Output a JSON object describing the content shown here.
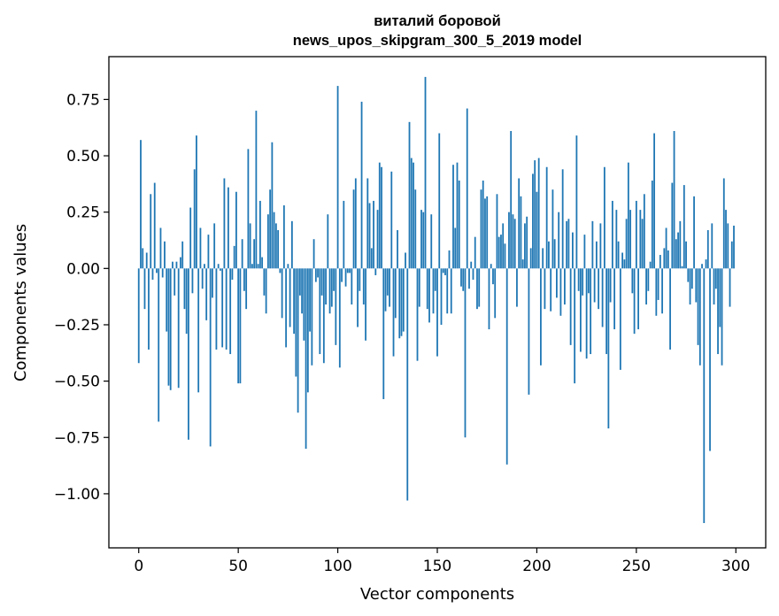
{
  "chart_data": {
    "type": "bar",
    "title": "виталий боровой",
    "subtitle": "news_upos_skipgram_300_5_2019 model",
    "xlabel": "Vector components",
    "ylabel": "Components values",
    "xlim": [
      -15,
      315
    ],
    "ylim": [
      -1.24,
      0.94
    ],
    "xticks": [
      0,
      50,
      100,
      150,
      200,
      250,
      300
    ],
    "yticks": [
      0.75,
      0.5,
      0.25,
      0.0,
      -0.25,
      -0.5,
      -0.75,
      -1.0
    ],
    "ytick_labels": [
      "0.75",
      "0.50",
      "0.25",
      "0.00",
      "−0.25",
      "−0.50",
      "−0.75",
      "−1.00"
    ],
    "bar_color": "#1f77b4",
    "grid": false,
    "legend": "none",
    "values": [
      -0.42,
      0.57,
      0.09,
      -0.18,
      0.07,
      -0.36,
      0.33,
      -0.05,
      0.38,
      -0.02,
      -0.68,
      0.18,
      -0.04,
      0.12,
      -0.28,
      -0.52,
      -0.54,
      0.03,
      -0.12,
      0.03,
      -0.53,
      0.05,
      0.12,
      -0.18,
      -0.29,
      -0.76,
      0.27,
      -0.11,
      0.44,
      0.59,
      -0.55,
      0.18,
      -0.09,
      0.02,
      -0.23,
      0.15,
      -0.79,
      -0.13,
      0.2,
      -0.36,
      0.02,
      -0.01,
      -0.35,
      0.4,
      -0.36,
      0.36,
      -0.38,
      -0.05,
      0.1,
      0.34,
      -0.51,
      -0.51,
      0.13,
      -0.1,
      -0.18,
      0.53,
      0.2,
      0.02,
      0.13,
      0.7,
      0.02,
      0.3,
      0.05,
      -0.12,
      -0.2,
      0.24,
      0.35,
      0.56,
      0.25,
      0.2,
      0.17,
      -0.02,
      -0.22,
      0.28,
      -0.35,
      0.02,
      -0.26,
      0.21,
      -0.29,
      -0.48,
      -0.64,
      -0.12,
      -0.2,
      -0.32,
      -0.8,
      -0.55,
      -0.28,
      -0.43,
      0.13,
      -0.06,
      -0.04,
      -0.38,
      -0.12,
      -0.42,
      -0.16,
      0.24,
      -0.2,
      -0.17,
      -0.1,
      -0.34,
      0.81,
      -0.44,
      -0.06,
      0.3,
      -0.08,
      -0.02,
      -0.02,
      -0.16,
      0.35,
      0.4,
      -0.26,
      -0.1,
      0.74,
      -0.16,
      -0.32,
      0.4,
      0.29,
      0.09,
      0.3,
      -0.03,
      0.26,
      0.47,
      0.45,
      -0.58,
      -0.19,
      -0.12,
      -0.17,
      0.43,
      -0.39,
      -0.22,
      0.17,
      -0.31,
      -0.3,
      -0.28,
      0.07,
      -1.03,
      0.65,
      0.49,
      0.47,
      0.35,
      -0.41,
      -0.17,
      0.26,
      0.25,
      0.85,
      -0.18,
      -0.24,
      0.24,
      -0.2,
      -0.1,
      -0.39,
      0.6,
      -0.25,
      -0.02,
      -0.03,
      -0.2,
      0.08,
      -0.2,
      0.46,
      0.18,
      0.47,
      0.39,
      -0.08,
      -0.1,
      -0.75,
      0.71,
      -0.09,
      0.03,
      -0.05,
      0.14,
      -0.18,
      -0.17,
      0.35,
      0.39,
      0.31,
      0.32,
      -0.27,
      0.02,
      -0.07,
      -0.22,
      0.33,
      0.14,
      0.15,
      0.2,
      0.11,
      -0.87,
      0.25,
      0.61,
      0.24,
      0.22,
      -0.17,
      0.4,
      0.32,
      0.04,
      0.2,
      0.23,
      -0.56,
      0.09,
      0.42,
      0.48,
      0.34,
      0.49,
      -0.43,
      0.09,
      -0.18,
      0.45,
      0.12,
      -0.19,
      0.35,
      0.13,
      -0.13,
      0.25,
      -0.21,
      0.44,
      -0.16,
      0.21,
      0.22,
      -0.34,
      0.16,
      -0.51,
      0.59,
      -0.1,
      -0.37,
      -0.12,
      0.15,
      -0.4,
      -0.11,
      -0.38,
      0.21,
      -0.15,
      0.12,
      -0.18,
      0.2,
      -0.26,
      0.45,
      -0.38,
      -0.71,
      -0.15,
      0.3,
      -0.27,
      0.26,
      0.12,
      -0.45,
      0.07,
      0.04,
      0.22,
      0.47,
      0.26,
      -0.11,
      -0.29,
      0.3,
      -0.27,
      0.26,
      0.22,
      0.33,
      -0.16,
      -0.1,
      0.03,
      0.39,
      0.6,
      -0.21,
      -0.14,
      0.06,
      -0.2,
      0.09,
      0.18,
      0.08,
      -0.36,
      0.38,
      0.61,
      0.13,
      0.16,
      0.21,
      0.01,
      0.37,
      0.12,
      -0.06,
      -0.16,
      -0.09,
      0.32,
      -0.15,
      -0.34,
      -0.43,
      0.02,
      -1.13,
      0.04,
      0.17,
      -0.81,
      0.2,
      -0.16,
      -0.09,
      -0.38,
      -0.26,
      -0.43,
      0.4,
      0.26,
      0.2,
      -0.17,
      0.12,
      0.19
    ]
  }
}
